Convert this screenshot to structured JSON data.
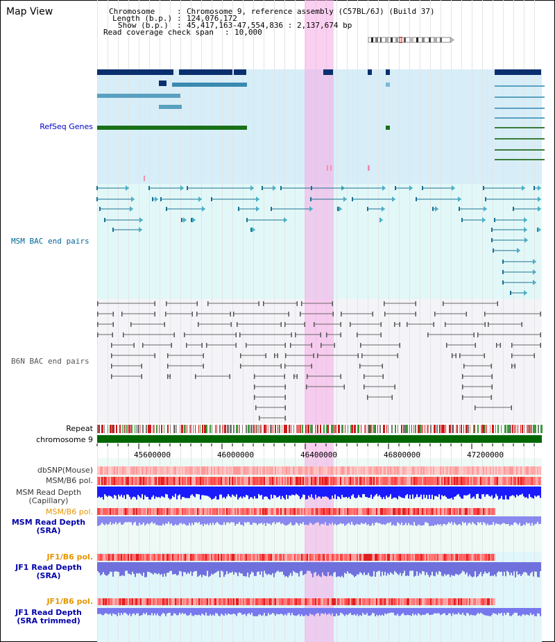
{
  "window": {
    "title": "Map View"
  },
  "header": {
    "chromosome_label": "Chromosome",
    "chromosome_value": "Chromosome 9, reference assembly (C57BL/6J) (Build 37)",
    "length_label": "Length (b.p.)",
    "length_value": "124,076,172",
    "show_label": "Show (b.p.)",
    "show_value": "45,417,163-47,554,836 : 2,137,674 bp",
    "coverage_label": "Read coverage check span",
    "coverage_value": "10,000"
  },
  "tracks": {
    "refseq": "RefSeq Genes",
    "msm_bac": "MSM BAC end pairs",
    "b6n_bac": "B6N BAC end pairs",
    "repeat": "Repeat",
    "chromosome": "chromosome 9",
    "dbsnp": "dbSNP(Mouse)",
    "msm_b6_pol": "MSM/B6 pol.",
    "msm_depth_cap_1": "MSM Read Depth",
    "msm_depth_cap_2": "(Capillary)",
    "msm_b6_pol_2": "MSM/B6 pol.",
    "msm_depth_sra_1": "MSM Read Depth",
    "msm_depth_sra_2": "(SRA)",
    "jf1_b6_pol": "JF1/B6 pol.",
    "jf1_depth_sra_1": "JF1 Read Depth",
    "jf1_depth_sra_2": "(SRA)",
    "jf1_b6_pol_2": "JF1/B6 pol.",
    "jf1_depth_trim_1": "JF1 Read Depth",
    "jf1_depth_trim_2": "(SRA trimmed)"
  },
  "axis": {
    "ticks": [
      "45600000",
      "46000000",
      "46400000",
      "46800000",
      "47200000"
    ]
  },
  "colors": {
    "refseq_label": "#0000cc",
    "msm_label": "#006699",
    "b6n_label": "#555555",
    "orange": "#e69500",
    "blue_label": "#0000aa",
    "highlight": "#f5aae6"
  }
}
